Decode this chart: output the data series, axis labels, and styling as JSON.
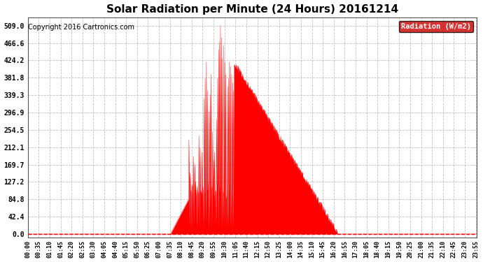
{
  "title": "Solar Radiation per Minute (24 Hours) 20161214",
  "copyright": "Copyright 2016 Cartronics.com",
  "legend_label": "Radiation (W/m2)",
  "yticks": [
    0.0,
    42.4,
    84.8,
    127.2,
    169.7,
    212.1,
    254.5,
    296.9,
    339.3,
    381.8,
    424.2,
    466.6,
    509.0
  ],
  "ymax": 530,
  "ymin": -8,
  "fill_color": "#ff0000",
  "line_color": "#ff0000",
  "background_color": "#ffffff",
  "grid_color": "#b0b0b0",
  "dashed_line_color": "#ff0000",
  "title_fontsize": 11,
  "copyright_fontsize": 7,
  "legend_bg": "#cc0000",
  "legend_text_color": "#ffffff",
  "sunrise_min": 457,
  "sunset_min": 988,
  "peak_min": 635,
  "peak_val": 509,
  "post_peak_val": 420,
  "post_peak_min": 685,
  "sunset_val": 5
}
